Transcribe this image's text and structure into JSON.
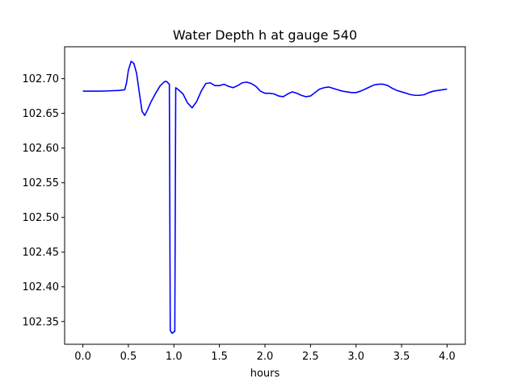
{
  "chart_data": {
    "type": "line",
    "title": "Water Depth h at gauge 540",
    "xlabel": "hours",
    "ylabel": "",
    "xlim": [
      -0.2,
      4.2
    ],
    "ylim": [
      102.3172,
      102.746
    ],
    "x_ticks": [
      0.0,
      0.5,
      1.0,
      1.5,
      2.0,
      2.5,
      3.0,
      3.5,
      4.0
    ],
    "x_tick_labels": [
      "0.0",
      "0.5",
      "1.0",
      "1.5",
      "2.0",
      "2.5",
      "3.0",
      "3.5",
      "4.0"
    ],
    "y_ticks": [
      102.35,
      102.4,
      102.45,
      102.5,
      102.55,
      102.6,
      102.65,
      102.7
    ],
    "y_tick_labels": [
      "102.35",
      "102.40",
      "102.45",
      "102.50",
      "102.55",
      "102.60",
      "102.65",
      "102.70"
    ],
    "grid": false,
    "series": [
      {
        "color": "#0000ff",
        "x": [
          0.0,
          0.2,
          0.4,
          0.46,
          0.48,
          0.5,
          0.53,
          0.56,
          0.59,
          0.62,
          0.65,
          0.68,
          0.71,
          0.75,
          0.8,
          0.85,
          0.9,
          0.92,
          0.95,
          0.96,
          0.97,
          0.98,
          1.0,
          1.01,
          1.02,
          1.05,
          1.1,
          1.15,
          1.2,
          1.25,
          1.3,
          1.35,
          1.4,
          1.45,
          1.5,
          1.55,
          1.6,
          1.65,
          1.7,
          1.75,
          1.8,
          1.85,
          1.9,
          1.95,
          2.0,
          2.05,
          2.1,
          2.15,
          2.2,
          2.25,
          2.3,
          2.35,
          2.4,
          2.45,
          2.5,
          2.55,
          2.6,
          2.65,
          2.7,
          2.75,
          2.8,
          2.85,
          2.9,
          2.95,
          3.0,
          3.05,
          3.1,
          3.15,
          3.2,
          3.25,
          3.3,
          3.35,
          3.4,
          3.45,
          3.5,
          3.55,
          3.6,
          3.65,
          3.7,
          3.75,
          3.8,
          3.85,
          3.9,
          3.95,
          4.0
        ],
        "values": [
          102.682,
          102.682,
          102.683,
          102.684,
          102.694,
          102.712,
          102.725,
          102.722,
          102.708,
          102.68,
          102.653,
          102.647,
          102.655,
          102.667,
          102.679,
          102.69,
          102.696,
          102.696,
          102.692,
          102.337,
          102.335,
          102.333,
          102.335,
          102.336,
          102.687,
          102.684,
          102.678,
          102.665,
          102.658,
          102.667,
          102.682,
          102.693,
          102.694,
          102.69,
          102.69,
          102.692,
          102.689,
          102.687,
          102.69,
          102.694,
          102.695,
          102.693,
          102.689,
          102.682,
          102.679,
          102.679,
          102.678,
          102.675,
          102.674,
          102.678,
          102.681,
          102.679,
          102.676,
          102.674,
          102.675,
          102.68,
          102.685,
          102.687,
          102.688,
          102.686,
          102.684,
          102.682,
          102.681,
          102.68,
          102.68,
          102.682,
          102.685,
          102.688,
          102.691,
          102.692,
          102.692,
          102.69,
          102.686,
          102.683,
          102.681,
          102.679,
          102.677,
          102.676,
          102.676,
          102.677,
          102.68,
          102.682,
          102.683,
          102.684,
          102.685
        ]
      }
    ]
  }
}
